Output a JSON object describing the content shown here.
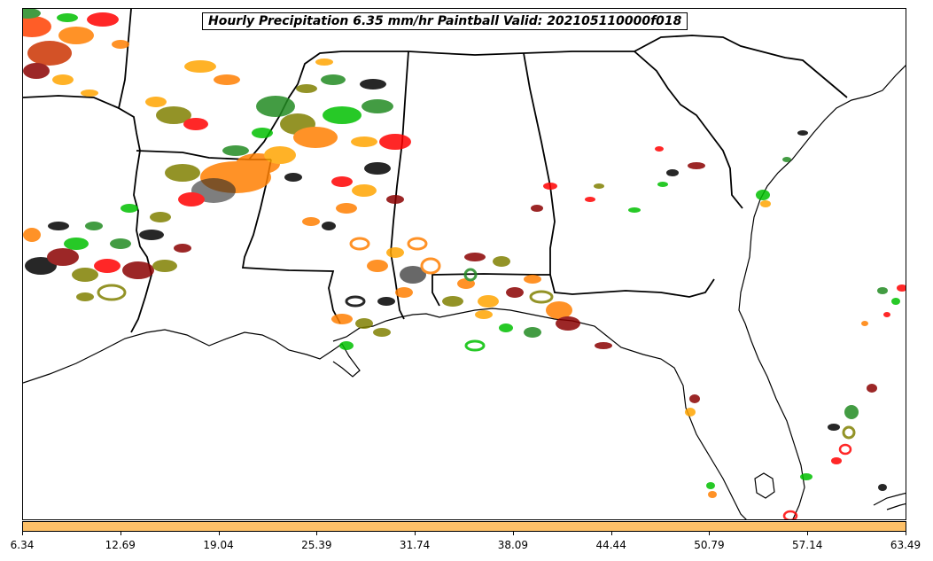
{
  "title": "Hourly Precipitation 6.35 mm/hr Paintball Valid: 202105110000f018",
  "colorbar": {
    "color": "#FDC068",
    "ticks": [
      "6.34",
      "12.69",
      "19.04",
      "25.39",
      "31.74",
      "38.09",
      "44.44",
      "50.79",
      "57.14",
      "63.49"
    ]
  },
  "map": {
    "region": "southeastern-us",
    "paintball_colors": [
      "#ff0000",
      "#ff7f00",
      "#00c000",
      "#8b0000",
      "#808000",
      "#000000",
      "#ffa500",
      "#228b22"
    ]
  }
}
